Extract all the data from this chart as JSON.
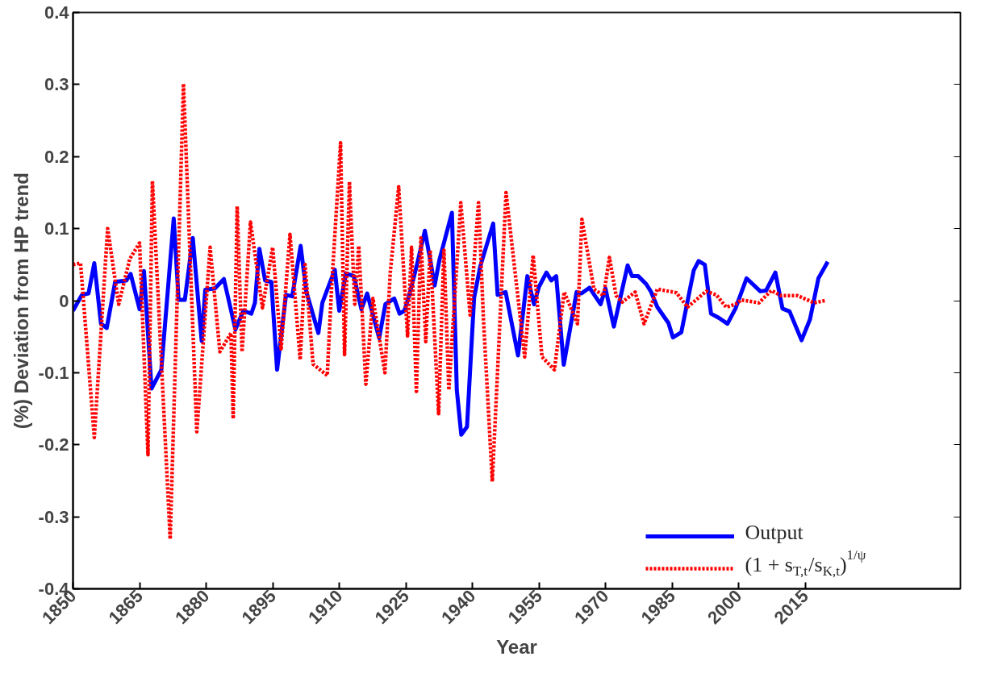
{
  "chart_data": {
    "type": "line",
    "xlabel": "Year",
    "ylabel": "(%) Deviation from HP trend",
    "xlim": [
      1850,
      2050
    ],
    "xticks": [
      1850,
      1865,
      1880,
      1895,
      1910,
      1925,
      1940,
      1955,
      1970,
      1985,
      2000,
      2015
    ],
    "ylim": [
      -0.4,
      0.4
    ],
    "yticks": [
      -0.4,
      -0.3,
      -0.2,
      -0.1,
      0,
      0.1,
      0.2,
      0.3,
      0.4
    ],
    "grid": false,
    "legend": "bottom right",
    "marker": "none",
    "series": [
      {
        "name": "Output",
        "color": "#0000ff",
        "line_style": "solid",
        "x": [
          1850,
          1852,
          1853.5,
          1854.8,
          1856.3,
          1857.6,
          1859.5,
          1862,
          1863,
          1865,
          1866,
          1867.7,
          1869.9,
          1872.7,
          1873.8,
          1875.2,
          1877,
          1879,
          1879.8,
          1882,
          1884,
          1886.6,
          1888.4,
          1890.2,
          1891,
          1892,
          1893.3,
          1894.7,
          1896,
          1898,
          1899.4,
          1901.3,
          1902.6,
          1905.3,
          1906.2,
          1909,
          1910,
          1911.5,
          1913.3,
          1915,
          1916.3,
          1919,
          1920.4,
          1922.4,
          1923.6,
          1924.7,
          1925.8,
          1927.6,
          1929.3,
          1930.5,
          1931.5,
          1932.6,
          1935.4,
          1936.5,
          1937.5,
          1938.8,
          1940.4,
          1941.8,
          1944.7,
          1945.7,
          1947.5,
          1950.3,
          1952.4,
          1953.9,
          1955,
          1956.7,
          1957.8,
          1958.9,
          1960.6,
          1963.5,
          1964.6,
          1966.4,
          1968.9,
          1970,
          1971.9,
          1975,
          1976,
          1977.4,
          1979.2,
          1980.3,
          1981.7,
          1984.2,
          1985.2,
          1987.1,
          1989.9,
          1991,
          1992.4,
          1993.8,
          1995.6,
          1997.5,
          1999.3,
          2001.8,
          2004.9,
          2006.2,
          2008.3,
          2009.9,
          2011.5,
          2014.2,
          2016.1,
          2018,
          2020.1
        ],
        "values": [
          -0.014,
          0.008,
          0.01,
          0.052,
          -0.032,
          -0.038,
          0.026,
          0.028,
          0.037,
          -0.012,
          0.041,
          -0.122,
          -0.096,
          0.114,
          0.001,
          0.001,
          0.087,
          -0.056,
          0.015,
          0.017,
          0.03,
          -0.04,
          -0.014,
          -0.018,
          -0.003,
          0.072,
          0.028,
          0.026,
          -0.096,
          0.008,
          0.006,
          0.076,
          0.012,
          -0.045,
          -0.003,
          0.043,
          -0.014,
          0.038,
          0.034,
          -0.012,
          0.01,
          -0.052,
          -0.005,
          0.003,
          -0.018,
          -0.014,
          0.008,
          0.052,
          0.097,
          0.057,
          0.021,
          0.057,
          0.122,
          -0.124,
          -0.186,
          -0.175,
          0.004,
          0.048,
          0.107,
          0.008,
          0.012,
          -0.076,
          0.034,
          -0.005,
          0.019,
          0.039,
          0.028,
          0.034,
          -0.089,
          0.012,
          0.01,
          0.018,
          -0.005,
          0.017,
          -0.036,
          0.049,
          0.034,
          0.034,
          0.023,
          0.012,
          -0.009,
          -0.031,
          -0.051,
          -0.044,
          0.042,
          0.055,
          0.05,
          -0.018,
          -0.024,
          -0.032,
          -0.011,
          0.031,
          0.013,
          0.014,
          0.039,
          -0.011,
          -0.015,
          -0.055,
          -0.026,
          0.031,
          0.054
        ]
      },
      {
        "name": "(1 + s$_{T,t}$/s$_{K,t}$)$^{1/ψ}$",
        "color": "#ff0000",
        "line_style": "dotted",
        "x": [
          1850,
          1851.7,
          1854.8,
          1857.8,
          1860.3,
          1862.8,
          1865,
          1866.9,
          1867.9,
          1871.9,
          1874.9,
          1876.3,
          1877.9,
          1880.9,
          1883.1,
          1885.6,
          1886.1,
          1887,
          1888.1,
          1890,
          1892.7,
          1895,
          1896.9,
          1898.9,
          1901.2,
          1902.3,
          1904.1,
          1907.3,
          1908.3,
          1910.3,
          1911.2,
          1912.3,
          1913.5,
          1914.4,
          1916,
          1917.6,
          1920.3,
          1921.5,
          1923.4,
          1925.4,
          1926.3,
          1927.4,
          1928.4,
          1929.5,
          1930.5,
          1932.4,
          1933.6,
          1934.7,
          1937.4,
          1939.5,
          1941.4,
          1942.5,
          1944.5,
          1947.6,
          1951.8,
          1953.7,
          1955.7,
          1958.5,
          1960.7,
          1963.7,
          1964.7,
          1967.4,
          1969.6,
          1970.9,
          1972.4,
          1973.8,
          1976.7,
          1978.7,
          1981.7,
          1986,
          1988.5,
          1992.7,
          1995,
          1997.2,
          1999.3,
          2000.6,
          2004.6,
          2007.4,
          2009.6,
          2013.3,
          2017,
          2019.5
        ],
        "values": [
          0.05,
          0.052,
          -0.19,
          0.1,
          -0.005,
          0.058,
          0.08,
          -0.214,
          0.166,
          -0.331,
          0.301,
          0.074,
          -0.182,
          0.074,
          -0.071,
          -0.045,
          -0.164,
          0.131,
          -0.071,
          0.109,
          -0.01,
          0.074,
          -0.067,
          0.092,
          -0.082,
          0.05,
          -0.088,
          -0.104,
          0.02,
          0.219,
          -0.075,
          0.165,
          -0.005,
          0.076,
          -0.116,
          0.003,
          -0.1,
          0.039,
          0.158,
          -0.049,
          0.074,
          -0.126,
          0.087,
          -0.057,
          0.07,
          -0.157,
          0.07,
          -0.124,
          0.136,
          -0.02,
          0.136,
          -0.025,
          -0.251,
          0.15,
          -0.078,
          0.063,
          -0.078,
          -0.096,
          0.012,
          -0.032,
          0.113,
          0.016,
          0.007,
          0.06,
          0.007,
          -0.002,
          0.012,
          -0.032,
          0.016,
          0.011,
          -0.009,
          0.013,
          0.008,
          -0.009,
          -0.005,
          0.001,
          -0.003,
          0.014,
          0.007,
          0.007,
          -0.003,
          0
        ]
      }
    ]
  }
}
